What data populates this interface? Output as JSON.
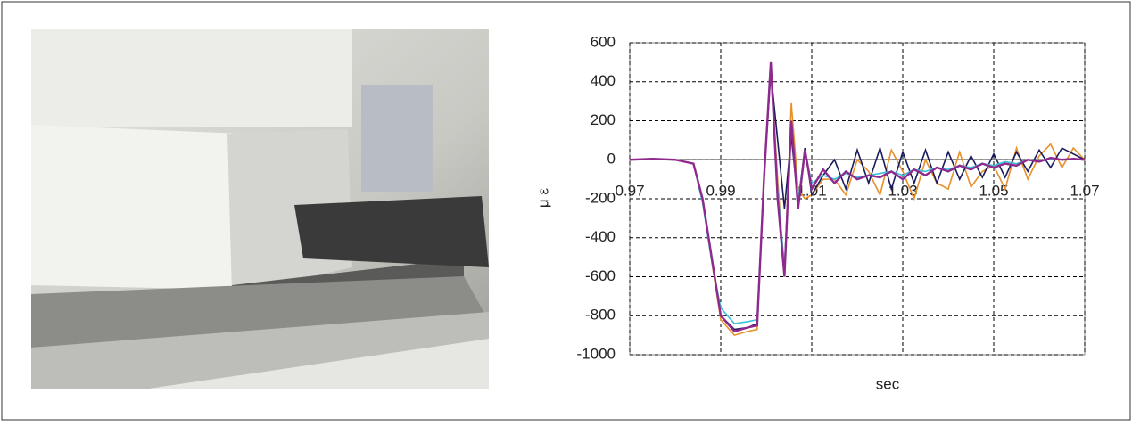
{
  "chart_data": {
    "type": "line",
    "y_label": "μ ε",
    "x_label": "sec",
    "x": [
      0.97,
      0.975,
      0.98,
      0.984,
      0.986,
      0.988,
      0.99,
      0.993,
      0.996,
      0.998,
      0.9995,
      1.001,
      1.0025,
      1.004,
      1.0055,
      1.007,
      1.0085,
      1.01,
      1.0125,
      1.015,
      1.0175,
      1.02,
      1.0225,
      1.025,
      1.0275,
      1.03,
      1.0325,
      1.035,
      1.0375,
      1.04,
      1.0425,
      1.045,
      1.0475,
      1.05,
      1.0525,
      1.055,
      1.0575,
      1.06,
      1.0625,
      1.065,
      1.0675,
      1.07
    ],
    "series": [
      {
        "color": "#e8902a",
        "values": [
          0,
          5,
          0,
          -20,
          -200,
          -520,
          -820,
          -900,
          -880,
          -870,
          -80,
          480,
          -100,
          -580,
          290,
          -150,
          -200,
          -180,
          -100,
          -100,
          -180,
          0,
          -60,
          -180,
          50,
          -60,
          -200,
          0,
          -120,
          -150,
          40,
          -140,
          -60,
          -30,
          -150,
          60,
          -100,
          20,
          80,
          -40,
          60,
          0
        ]
      },
      {
        "color": "#1a1a5e",
        "values": [
          0,
          5,
          0,
          -20,
          -200,
          -500,
          -800,
          -870,
          -860,
          -840,
          -100,
          450,
          100,
          -250,
          120,
          -220,
          60,
          -180,
          -80,
          0,
          -150,
          50,
          -120,
          60,
          -150,
          40,
          -120,
          50,
          -120,
          40,
          -100,
          20,
          -90,
          30,
          -90,
          40,
          -60,
          50,
          -40,
          60,
          30,
          0
        ]
      },
      {
        "color": "#3cc0d8",
        "values": [
          0,
          5,
          0,
          -20,
          -220,
          -520,
          -760,
          -840,
          -830,
          -820,
          -100,
          480,
          -150,
          -550,
          180,
          -200,
          40,
          -120,
          -80,
          -100,
          -70,
          -90,
          -80,
          -70,
          -60,
          -80,
          -50,
          -60,
          -40,
          -50,
          -30,
          -40,
          -20,
          -30,
          -10,
          -20,
          0,
          -10,
          5,
          0,
          5,
          0
        ]
      },
      {
        "color": "#8e2a8e",
        "values": [
          0,
          5,
          0,
          -20,
          -200,
          -500,
          -800,
          -880,
          -860,
          -850,
          -100,
          500,
          -200,
          -600,
          200,
          -250,
          50,
          -150,
          -50,
          -120,
          -60,
          -100,
          -80,
          -90,
          -60,
          -100,
          -50,
          -80,
          -40,
          -60,
          -30,
          -50,
          -20,
          -40,
          -20,
          -30,
          0,
          -10,
          10,
          0,
          5,
          0
        ]
      }
    ],
    "xlim": [
      0.97,
      1.07
    ],
    "xticks": [
      0.97,
      0.99,
      1.01,
      1.03,
      1.05,
      1.07
    ],
    "ylim": [
      -1000,
      600
    ],
    "yticks": [
      -1000,
      -800,
      -600,
      -400,
      -200,
      0,
      200,
      400,
      600
    ],
    "grid": true
  }
}
